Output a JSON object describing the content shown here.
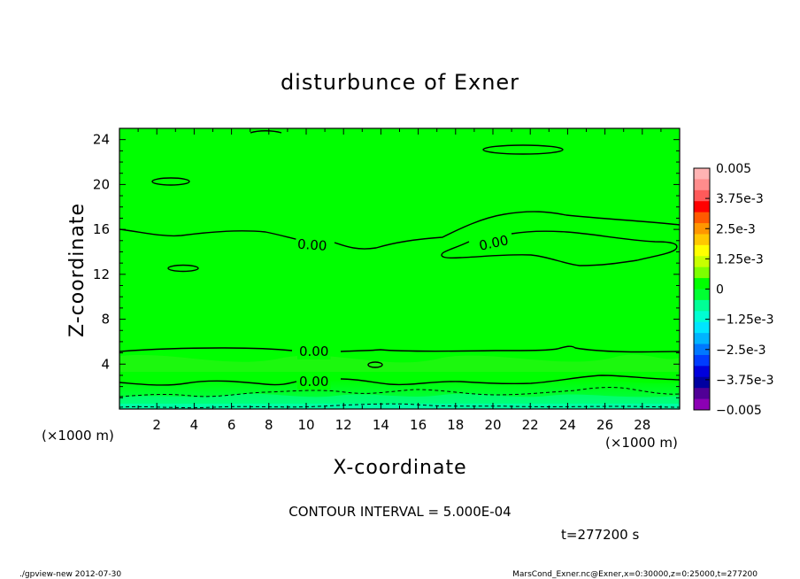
{
  "chart_data": {
    "type": "contour",
    "title": "disturbunce of Exner",
    "xlabel": "X-coordinate",
    "ylabel": "Z-coordinate",
    "x_unit": "(×1000 m)",
    "y_unit": "(×1000 m)",
    "xlim": [
      0,
      30
    ],
    "ylim": [
      0,
      25
    ],
    "x_ticks": [
      2,
      4,
      6,
      8,
      10,
      12,
      14,
      16,
      18,
      20,
      22,
      24,
      26,
      28
    ],
    "y_ticks": [
      4,
      8,
      12,
      16,
      20,
      24
    ],
    "contour_interval_label": "CONTOUR INTERVAL = 5.000E-04",
    "contour_labels": [
      "0.00",
      "0.00",
      "0.00",
      "0.00"
    ],
    "time_label": "t=277200 s",
    "colorbar": {
      "ticks": [
        "0.005",
        "3.75e-3",
        "2.5e-3",
        "1.25e-3",
        "0",
        "−1.25e-3",
        "−2.5e-3",
        "−3.75e-3",
        "−0.005"
      ],
      "colors": [
        "#ffb3b3",
        "#ff8c8c",
        "#ff5a5a",
        "#ff0000",
        "#ff5a00",
        "#ff9600",
        "#ffc800",
        "#ffff00",
        "#c8ff00",
        "#7dff00",
        "#00ff00",
        "#00ff32",
        "#00ff96",
        "#00ffd2",
        "#00e6ff",
        "#00b4ff",
        "#0078ff",
        "#003cff",
        "#0000dc",
        "#0000a0",
        "#500096",
        "#8c00b4"
      ]
    }
  },
  "footer": {
    "left": "./gpview-new  2012-07-30",
    "right": "MarsCond_Exner.nc@Exner,x=0:30000,z=0:25000,t=277200"
  }
}
